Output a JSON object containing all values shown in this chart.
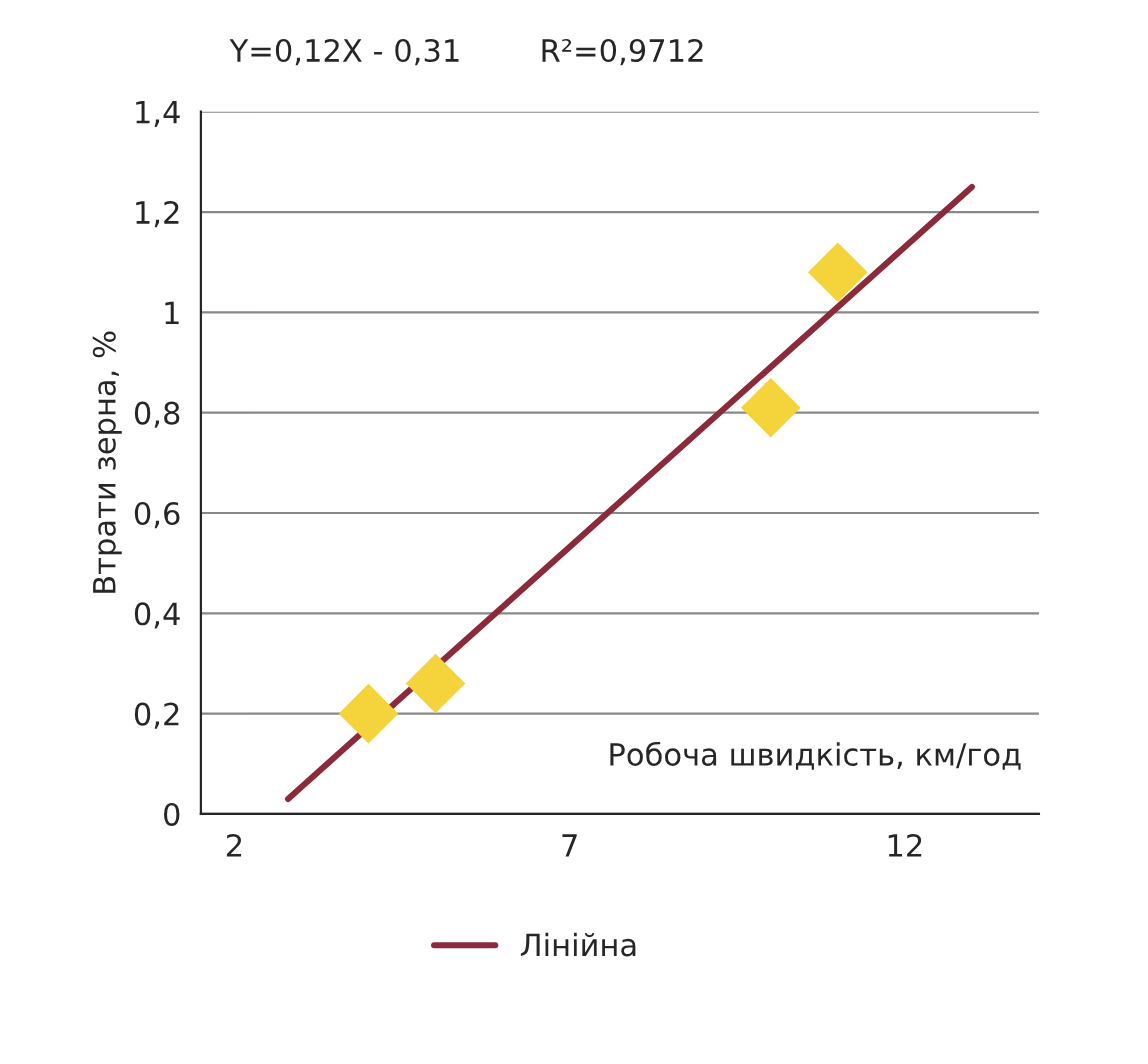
{
  "chart_data": {
    "type": "scatter",
    "xlabel": "Робоча швидкість, км/год",
    "ylabel": "Втрати зерна, %",
    "annotations": [
      "Y=0,12X - 0,31",
      "R²=0,9712"
    ],
    "series": [
      {
        "color": "#f5d33a",
        "marker": "diamond",
        "x": [
          4,
          5,
          10,
          11
        ],
        "values": [
          0.2,
          0.26,
          0.81,
          1.08
        ]
      },
      {
        "type": "line",
        "name": "Лінійна",
        "color": "#8b2a3a",
        "line_style": "solid",
        "x": [
          2.8,
          13
        ],
        "values": [
          0.03,
          1.25
        ]
      }
    ],
    "xlim": [
      1.5,
      14
    ],
    "xticks": [
      2,
      7,
      12
    ],
    "ylim": [
      0,
      1.4
    ],
    "yticks": [
      0,
      {
        "value": 0.2,
        "label": "0,2"
      },
      {
        "value": 0.4,
        "label": "0,4"
      },
      {
        "value": 0.6,
        "label": "0,6"
      },
      {
        "value": 0.8,
        "label": "0,8"
      },
      1,
      {
        "value": 1.2,
        "label": "1,2"
      },
      {
        "value": 1.4,
        "label": "1,4"
      }
    ],
    "grid": "y",
    "legend": "bottom"
  }
}
